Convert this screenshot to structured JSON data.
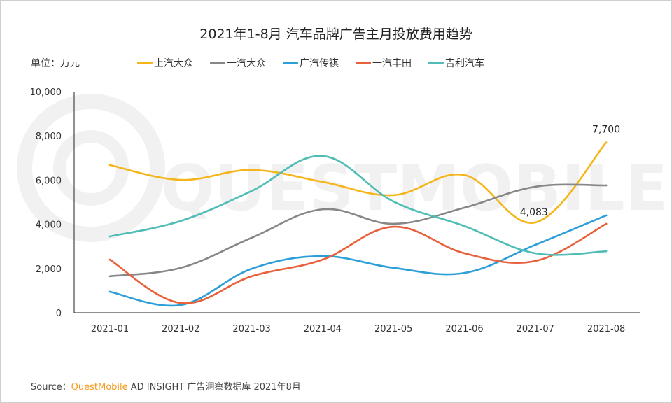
{
  "chart_data": {
    "type": "line",
    "title": "2021年1-8月 汽车品牌广告主月投放费用趋势",
    "unit_label": "单位：万元",
    "categories": [
      "2021-01",
      "2021-02",
      "2021-03",
      "2021-04",
      "2021-05",
      "2021-06",
      "2021-07",
      "2021-08"
    ],
    "ylim": [
      0,
      10000
    ],
    "yticks": [
      "0",
      "2,000",
      "4,000",
      "6,000",
      "8,000",
      "10,000"
    ],
    "grid": false,
    "smooth": true,
    "legend_position": "top",
    "series": [
      {
        "name": "上汽大众",
        "color": "#f5b51b",
        "values": [
          6680,
          6010,
          6460,
          5920,
          5320,
          6230,
          4083,
          7700
        ]
      },
      {
        "name": "一汽大众",
        "color": "#878787",
        "values": [
          1650,
          2030,
          3390,
          4680,
          4020,
          4750,
          5700,
          5760
        ]
      },
      {
        "name": "广汽传祺",
        "color": "#2c9fd8",
        "values": [
          950,
          350,
          1990,
          2560,
          2030,
          1800,
          3070,
          4400
        ]
      },
      {
        "name": "一汽丰田",
        "color": "#e8603c",
        "values": [
          2400,
          440,
          1650,
          2400,
          3890,
          2690,
          2340,
          4020
        ]
      },
      {
        "name": "吉利汽车",
        "color": "#4fbdb5",
        "values": [
          3450,
          4150,
          5510,
          7090,
          5030,
          3920,
          2690,
          2780
        ]
      }
    ],
    "annotations": [
      {
        "series": "上汽大众",
        "category": "2021-07",
        "text": "4,083"
      },
      {
        "series": "上汽大众",
        "category": "2021-08",
        "text": "7,700"
      }
    ]
  },
  "watermark": "QUESTMOBILE",
  "source": {
    "prefix": "Source：",
    "brand": "QuestMobile",
    "rest": " AD INSIGHT 广告洞察数据库 2021年8月"
  }
}
